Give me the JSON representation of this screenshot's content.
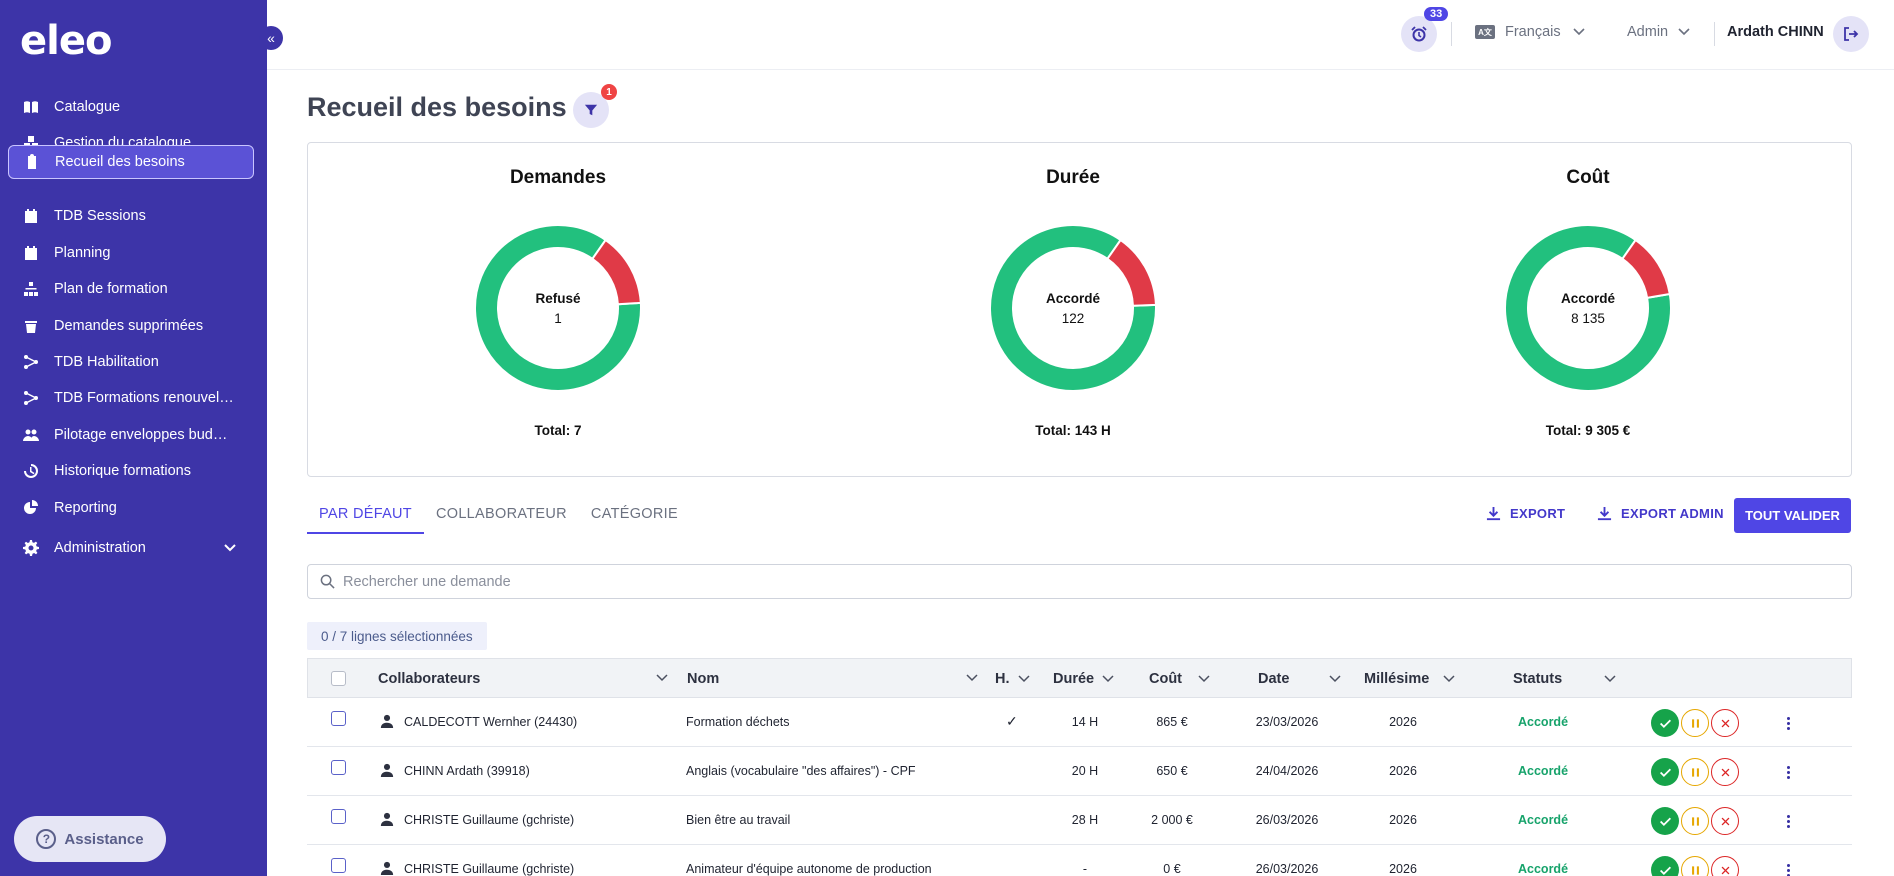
{
  "app": {
    "logo": "eleo"
  },
  "sidebar": {
    "items": [
      {
        "label": "Catalogue",
        "icon": "book-icon"
      },
      {
        "label": "Gestion du catalogue",
        "icon": "boxes-icon"
      },
      {
        "label": "Recueil des besoins",
        "icon": "clipboard-icon",
        "active": true
      },
      {
        "label": "TDB Sessions",
        "icon": "calendar-check-icon"
      },
      {
        "label": "Planning",
        "icon": "calendar-icon"
      },
      {
        "label": "Plan de formation",
        "icon": "sitemap-icon"
      },
      {
        "label": "Demandes supprimées",
        "icon": "trash-icon"
      },
      {
        "label": "TDB Habilitation",
        "icon": "network-icon"
      },
      {
        "label": "TDB Formations renouvela...",
        "icon": "network-icon"
      },
      {
        "label": "Pilotage enveloppes budgét...",
        "icon": "users-icon"
      },
      {
        "label": "Historique formations",
        "icon": "history-icon"
      },
      {
        "label": "Reporting",
        "icon": "pie-chart-icon"
      },
      {
        "label": "Administration",
        "icon": "gear-icon"
      }
    ],
    "assistance": "Assistance"
  },
  "topbar": {
    "notifications": "33",
    "language": "Français",
    "role": "Admin",
    "user": "Ardath CHINN"
  },
  "page": {
    "title": "Recueil des besoins",
    "filter_count": "1"
  },
  "chart_data": [
    {
      "type": "pie",
      "title": "Demandes",
      "center_label": "Refusé",
      "center_value": "1",
      "total": "Total: 7",
      "slices": [
        {
          "label": "Accordé",
          "value": 6,
          "color": "#22c07e"
        },
        {
          "label": "Refusé",
          "value": 1,
          "color": "#e03a47"
        }
      ]
    },
    {
      "type": "pie",
      "title": "Durée",
      "center_label": "Accordé",
      "center_value": "122",
      "total": "Total: 143 H",
      "slices": [
        {
          "label": "Accordé",
          "value": 122,
          "color": "#22c07e"
        },
        {
          "label": "Refusé",
          "value": 21,
          "color": "#e03a47"
        }
      ]
    },
    {
      "type": "pie",
      "title": "Coût",
      "center_label": "Accordé",
      "center_value": "8 135",
      "total": "Total: 9 305 €",
      "slices": [
        {
          "label": "Accordé",
          "value": 8135,
          "color": "#22c07e"
        },
        {
          "label": "Refusé",
          "value": 1170,
          "color": "#e03a47"
        }
      ]
    }
  ],
  "tabs": [
    "PAR DÉFAUT",
    "COLLABORATEUR",
    "CATÉGORIE"
  ],
  "actions": {
    "export": "EXPORT",
    "export_admin": "EXPORT ADMIN",
    "validate_all": "TOUT VALIDER"
  },
  "search": {
    "placeholder": "Rechercher une demande"
  },
  "selection": "0 / 7 lignes sélectionnées",
  "table": {
    "headers": [
      "Collaborateurs",
      "Nom",
      "H.",
      "Durée",
      "Coût",
      "Date",
      "Millésime",
      "Statuts"
    ],
    "rows": [
      {
        "collab": "CALDECOTT Wernher (24430)",
        "nom": "Formation déchets",
        "h": "✓",
        "duree": "14 H",
        "cout": "865 €",
        "date": "23/03/2026",
        "millesime": "2026",
        "statut": "Accordé"
      },
      {
        "collab": "CHINN Ardath (39918)",
        "nom": "Anglais (vocabulaire \"des affaires\") - CPF",
        "h": "",
        "duree": "20 H",
        "cout": "650 €",
        "date": "24/04/2026",
        "millesime": "2026",
        "statut": "Accordé"
      },
      {
        "collab": "CHRISTE Guillaume (gchriste)",
        "nom": "Bien être au travail",
        "h": "",
        "duree": "28 H",
        "cout": "2 000 €",
        "date": "26/03/2026",
        "millesime": "2026",
        "statut": "Accordé"
      },
      {
        "collab": "CHRISTE Guillaume (gchriste)",
        "nom": "Animateur d'équipe autonome de production",
        "h": "",
        "duree": "-",
        "cout": "0 €",
        "date": "26/03/2026",
        "millesime": "2026",
        "statut": "Accordé"
      }
    ]
  }
}
